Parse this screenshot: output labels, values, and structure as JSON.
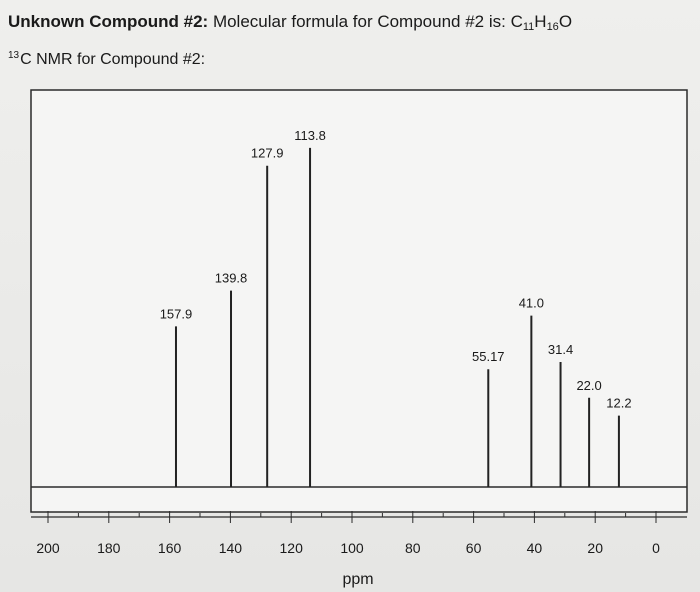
{
  "header": {
    "title_bold": "Unknown Compound #2:",
    "title_text": " Molecular formula for Compound #2 is: C",
    "sub_c": "11",
    "h_text": "H",
    "sub_h": "16",
    "o_text": "O"
  },
  "subtitle": {
    "sup": "13",
    "text": "C NMR for Compound #2:"
  },
  "chart_data": {
    "type": "bar",
    "title": "",
    "xlabel": "ppm",
    "ylabel": "",
    "xlim": [
      200,
      0
    ],
    "x_reversed": true,
    "grid": false,
    "x_ticks": [
      "200",
      "180",
      "160",
      "140",
      "120",
      "100",
      "80",
      "60",
      "40",
      "20",
      "0"
    ],
    "x_tick_values": [
      200,
      180,
      160,
      140,
      120,
      100,
      80,
      60,
      40,
      20,
      0
    ],
    "peaks": [
      {
        "ppm": 157.9,
        "label": "157.9",
        "height": 0.45
      },
      {
        "ppm": 139.8,
        "label": "139.8",
        "height": 0.55
      },
      {
        "ppm": 127.9,
        "label": "127.9",
        "height": 0.9
      },
      {
        "ppm": 113.8,
        "label": "113.8",
        "height": 0.95
      },
      {
        "ppm": 55.17,
        "label": "55.17",
        "height": 0.33
      },
      {
        "ppm": 41.0,
        "label": "41.0",
        "height": 0.48
      },
      {
        "ppm": 31.4,
        "label": "31.4",
        "height": 0.35
      },
      {
        "ppm": 22.0,
        "label": "22.0",
        "height": 0.25
      },
      {
        "ppm": 12.2,
        "label": "12.2",
        "height": 0.2
      }
    ]
  }
}
